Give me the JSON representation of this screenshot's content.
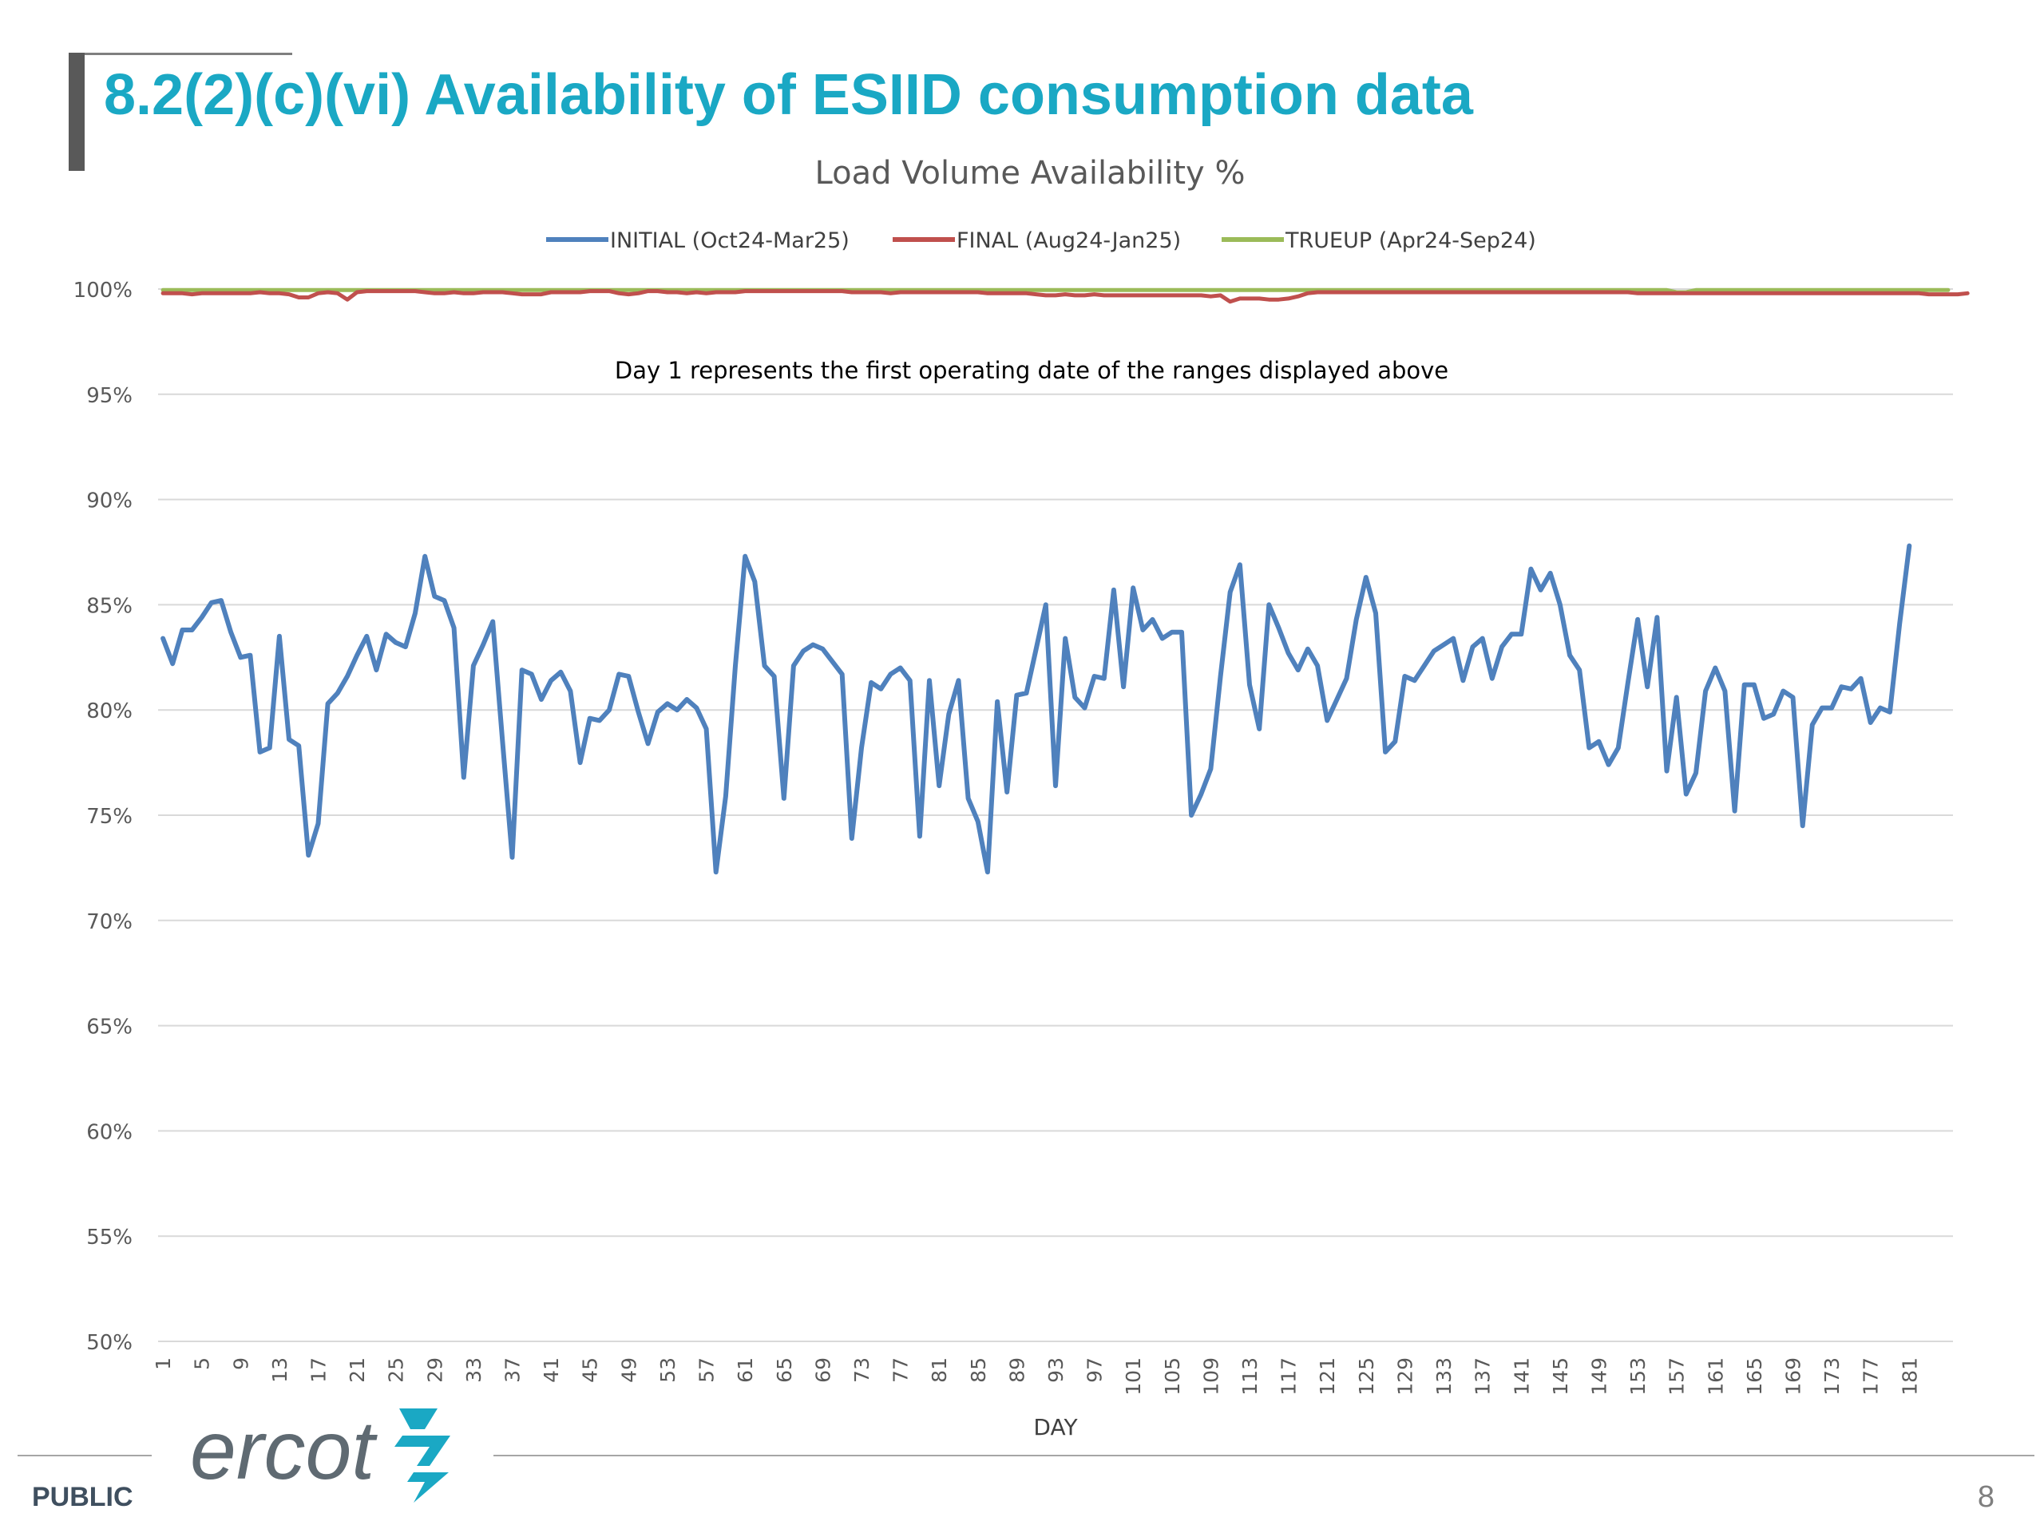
{
  "slide": {
    "title": "8.2(2)(c)(vi) Availability of ESIID consumption data",
    "footer_left": "PUBLIC",
    "page_number": "8",
    "logo": "ercot"
  },
  "colors": {
    "title": "#1aa8c4",
    "initial": "#4f81bd",
    "final": "#c0504d",
    "trueup": "#9bbb59",
    "grid": "#d9d9d9"
  },
  "chart_data": {
    "type": "line",
    "title": "Load Volume Availability %",
    "xlabel": "DAY",
    "ylabel": "",
    "annotation": "Day 1 represents the first operating date of the ranges displayed above",
    "ylim": [
      50,
      100
    ],
    "yticks": [
      "50%",
      "55%",
      "60%",
      "65%",
      "70%",
      "75%",
      "80%",
      "85%",
      "90%",
      "95%",
      "100%"
    ],
    "xticks": [
      "1",
      "5",
      "9",
      "13",
      "17",
      "21",
      "25",
      "29",
      "33",
      "37",
      "41",
      "45",
      "49",
      "53",
      "57",
      "61",
      "65",
      "69",
      "73",
      "77",
      "81",
      "85",
      "89",
      "93",
      "97",
      "101",
      "105",
      "109",
      "113",
      "117",
      "121",
      "125",
      "129",
      "133",
      "137",
      "141",
      "145",
      "149",
      "153",
      "157",
      "161",
      "165",
      "169",
      "173",
      "177",
      "181"
    ],
    "x_count": 185,
    "grid": "horizontal",
    "legend_position": "top",
    "series": [
      {
        "name": "INITIAL (Oct24-Mar25)",
        "color": "#4f81bd",
        "values": [
          83.4,
          82.2,
          83.8,
          83.8,
          84.4,
          85.1,
          85.2,
          83.7,
          82.5,
          82.6,
          78.0,
          78.2,
          83.5,
          78.6,
          78.3,
          73.1,
          74.6,
          80.3,
          80.8,
          81.6,
          82.6,
          83.5,
          81.9,
          83.6,
          83.2,
          83.0,
          84.6,
          87.3,
          85.4,
          85.2,
          83.9,
          76.8,
          82.1,
          83.1,
          84.2,
          78.5,
          73.0,
          81.9,
          81.7,
          80.5,
          81.4,
          81.8,
          80.9,
          77.5,
          79.6,
          79.5,
          80.0,
          81.7,
          81.6,
          79.9,
          78.4,
          79.9,
          80.3,
          80.0,
          80.5,
          80.1,
          79.1,
          72.3,
          75.9,
          82.1,
          87.3,
          86.1,
          82.1,
          81.6,
          75.8,
          82.1,
          82.8,
          83.1,
          82.9,
          82.3,
          81.7,
          73.9,
          78.2,
          81.3,
          81.0,
          81.7,
          82.0,
          81.4,
          74.0,
          81.4,
          76.4,
          79.8,
          81.4,
          75.8,
          74.7,
          72.3,
          80.4,
          76.1,
          80.7,
          80.8,
          82.9,
          85.0,
          76.4,
          83.4,
          80.6,
          80.1,
          81.6,
          81.5,
          85.7,
          81.1,
          85.8,
          83.8,
          84.3,
          83.4,
          83.7,
          83.7,
          75.0,
          76.0,
          77.2,
          81.6,
          85.6,
          86.9,
          81.2,
          79.1,
          85.0,
          83.9,
          82.7,
          81.9,
          82.9,
          82.1,
          79.5,
          80.5,
          81.5,
          84.3,
          86.3,
          84.6,
          78.0,
          78.5,
          81.6,
          81.4,
          82.1,
          82.8,
          83.1,
          83.4,
          81.4,
          83.0,
          83.4,
          81.5,
          83.0,
          83.6,
          83.6,
          86.7,
          85.7,
          86.5,
          85.0,
          82.6,
          81.9,
          78.2,
          78.5,
          77.4,
          78.2,
          81.3,
          84.3,
          81.1,
          84.4,
          77.1,
          80.6,
          76.0,
          77.0,
          80.9,
          82.0,
          80.9,
          75.2,
          81.2,
          81.2,
          79.6,
          79.8,
          80.9,
          80.6,
          74.5,
          79.3,
          80.1,
          80.1,
          81.1,
          81.0,
          81.5,
          79.4,
          80.1,
          79.9,
          84.1,
          87.8
        ]
      },
      {
        "name": "FINAL (Aug24-Jan25)",
        "color": "#c0504d",
        "values": [
          99.8,
          99.8,
          99.8,
          99.75,
          99.8,
          99.8,
          99.8,
          99.8,
          99.8,
          99.8,
          99.85,
          99.8,
          99.8,
          99.75,
          99.6,
          99.6,
          99.8,
          99.85,
          99.8,
          99.5,
          99.85,
          99.9,
          99.9,
          99.9,
          99.9,
          99.9,
          99.9,
          99.85,
          99.8,
          99.8,
          99.85,
          99.8,
          99.8,
          99.85,
          99.85,
          99.85,
          99.8,
          99.75,
          99.75,
          99.75,
          99.85,
          99.85,
          99.85,
          99.85,
          99.9,
          99.9,
          99.9,
          99.8,
          99.75,
          99.8,
          99.9,
          99.9,
          99.85,
          99.85,
          99.8,
          99.85,
          99.8,
          99.85,
          99.85,
          99.85,
          99.9,
          99.9,
          99.9,
          99.9,
          99.9,
          99.9,
          99.9,
          99.9,
          99.9,
          99.9,
          99.9,
          99.85,
          99.85,
          99.85,
          99.85,
          99.8,
          99.85,
          99.85,
          99.85,
          99.85,
          99.85,
          99.85,
          99.85,
          99.85,
          99.85,
          99.8,
          99.8,
          99.8,
          99.8,
          99.8,
          99.75,
          99.7,
          99.7,
          99.75,
          99.7,
          99.7,
          99.75,
          99.7,
          99.7,
          99.7,
          99.7,
          99.7,
          99.7,
          99.7,
          99.7,
          99.7,
          99.7,
          99.7,
          99.65,
          99.7,
          99.4,
          99.55,
          99.55,
          99.55,
          99.5,
          99.5,
          99.55,
          99.65,
          99.8,
          99.85,
          99.85,
          99.85,
          99.85,
          99.85,
          99.85,
          99.85,
          99.85,
          99.85,
          99.85,
          99.85,
          99.85,
          99.85,
          99.85,
          99.85,
          99.85,
          99.85,
          99.85,
          99.85,
          99.85,
          99.85,
          99.85,
          99.85,
          99.85,
          99.85,
          99.85,
          99.85,
          99.85,
          99.85,
          99.85,
          99.85,
          99.85,
          99.85,
          99.8,
          99.8,
          99.8,
          99.8,
          99.8,
          99.8,
          99.8,
          99.8,
          99.8,
          99.8,
          99.8,
          99.8,
          99.8,
          99.8,
          99.8,
          99.8,
          99.8,
          99.8,
          99.8,
          99.8,
          99.8,
          99.8,
          99.8,
          99.8,
          99.8,
          99.8,
          99.8,
          99.8,
          99.8,
          99.8,
          99.75,
          99.75,
          99.75,
          99.75,
          99.8
        ]
      },
      {
        "name": "TRUEUP (Apr24-Sep24)",
        "color": "#9bbb59",
        "values": [
          99.95,
          99.95,
          99.95,
          99.95,
          99.95,
          99.95,
          99.95,
          99.95,
          99.95,
          99.95,
          99.95,
          99.95,
          99.95,
          99.95,
          99.95,
          99.95,
          99.95,
          99.95,
          99.95,
          99.95,
          99.95,
          99.95,
          99.95,
          99.95,
          99.95,
          99.95,
          99.95,
          99.95,
          99.95,
          99.95,
          99.95,
          99.95,
          99.95,
          99.95,
          99.95,
          99.95,
          99.95,
          99.95,
          99.95,
          99.95,
          99.95,
          99.95,
          99.95,
          99.95,
          99.95,
          99.95,
          99.95,
          99.95,
          99.95,
          99.95,
          99.95,
          99.95,
          99.95,
          99.95,
          99.95,
          99.95,
          99.95,
          99.95,
          99.95,
          99.95,
          99.95,
          99.95,
          99.95,
          99.95,
          99.95,
          99.95,
          99.95,
          99.95,
          99.95,
          99.95,
          99.95,
          99.95,
          99.95,
          99.95,
          99.95,
          99.95,
          99.95,
          99.95,
          99.95,
          99.95,
          99.95,
          99.95,
          99.95,
          99.95,
          99.95,
          99.95,
          99.95,
          99.95,
          99.95,
          99.95,
          99.95,
          99.95,
          99.95,
          99.95,
          99.95,
          99.95,
          99.95,
          99.95,
          99.95,
          99.95,
          99.95,
          99.95,
          99.95,
          99.95,
          99.95,
          99.95,
          99.95,
          99.95,
          99.95,
          99.95,
          99.95,
          99.95,
          99.95,
          99.95,
          99.95,
          99.95,
          99.95,
          99.95,
          99.95,
          99.95,
          99.95,
          99.95,
          99.95,
          99.95,
          99.95,
          99.95,
          99.95,
          99.95,
          99.95,
          99.95,
          99.95,
          99.95,
          99.95,
          99.95,
          99.95,
          99.95,
          99.95,
          99.95,
          99.95,
          99.95,
          99.95,
          99.95,
          99.95,
          99.95,
          99.95,
          99.95,
          99.95,
          99.95,
          99.95,
          99.95,
          99.95,
          99.95,
          99.95,
          99.95,
          99.95,
          99.95,
          99.85,
          99.85,
          99.95,
          99.95,
          99.95,
          99.95,
          99.95,
          99.95,
          99.95,
          99.95,
          99.95,
          99.95,
          99.95,
          99.95,
          99.95,
          99.95,
          99.95,
          99.95,
          99.95,
          99.95,
          99.95,
          99.95,
          99.95,
          99.95,
          99.95,
          99.95,
          99.95,
          99.95,
          99.95
        ]
      }
    ]
  }
}
